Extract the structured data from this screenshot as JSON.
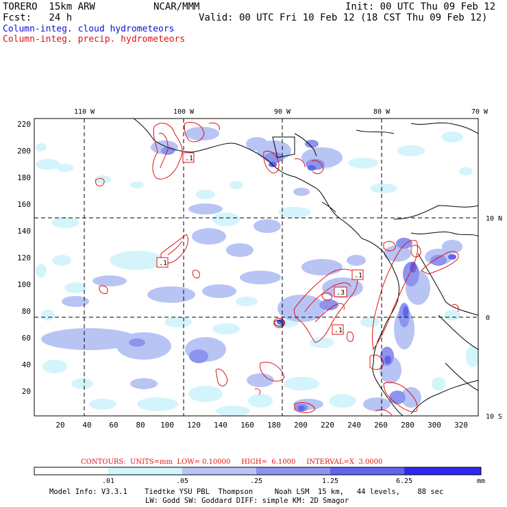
{
  "header": {
    "model": "TORERO  15km ARW",
    "center": "NCAR/MMM",
    "init": "Init: 00 UTC Thu 09 Feb 12",
    "fcst": "Fcst:   24 h",
    "valid": "Valid: 00 UTC Fri 10 Feb 12 (18 CST Thu 09 Feb 12)",
    "field_cloud": "Column-integ. cloud hydrometeors",
    "field_precip": "Column-integ. precip. hydrometeors"
  },
  "map": {
    "lon_labels": [
      "110 W",
      "100 W",
      "90 W",
      "80 W",
      "70 W"
    ],
    "lat_labels": [
      "10 N",
      "0",
      "10 S"
    ],
    "x_ticks": [
      "20",
      "40",
      "60",
      "80",
      "100",
      "120",
      "140",
      "160",
      "180",
      "200",
      "220",
      "240",
      "260",
      "280",
      "300",
      "320"
    ],
    "y_ticks": [
      "20",
      "40",
      "60",
      "80",
      "100",
      "120",
      "140",
      "160",
      "180",
      "200",
      "220"
    ],
    "contour_labels": [
      ".1",
      ".1",
      ".1",
      ".3",
      ".1",
      ".1"
    ]
  },
  "contour_info": "CONTOURS:  UNITS=mm  LOW= 0.10000     HIGH=  6.1000     INTERVAL=X  3.0000",
  "colorbar": {
    "labels": [
      ".01",
      ".05",
      ".25",
      "1.25",
      "6.25"
    ],
    "units": "mm",
    "colors": [
      "#ffffff",
      "#d4f4fb",
      "#b8c4f4",
      "#8c94ee",
      "#6264ec",
      "#2a2af0"
    ]
  },
  "footer": {
    "line1": "Model Info: V3.3.1    Tiedtke YSU PBL  Thompson     Noah LSM  15 km,   44 levels,    88 sec",
    "line2": "LW: Godd SW: Goddard DIFF: simple KM: 2D Smagor"
  }
}
